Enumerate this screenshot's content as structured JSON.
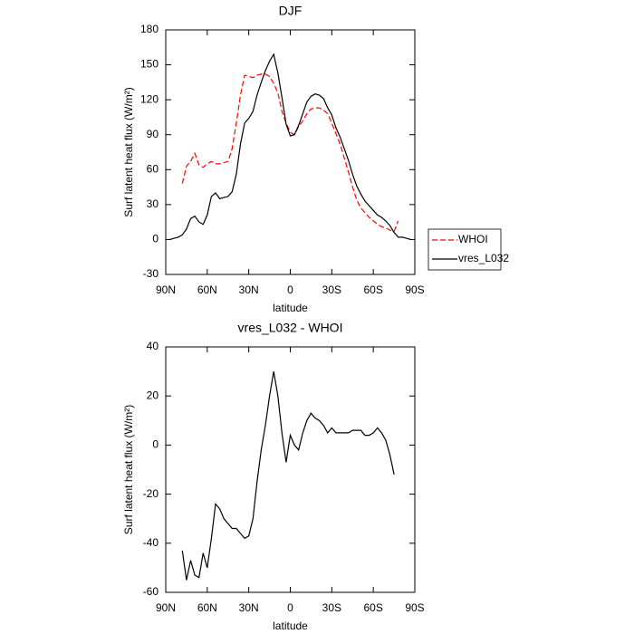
{
  "chart_data": [
    {
      "type": "line",
      "title": "DJF",
      "x_label": "latitude",
      "y_label": "Surf latent heat flux (W/m²)",
      "x": [
        87,
        84,
        81,
        78,
        75,
        72,
        69,
        66,
        63,
        60,
        57,
        54,
        51,
        48,
        45,
        42,
        39,
        36,
        33,
        30,
        27,
        24,
        21,
        18,
        15,
        12,
        9,
        6,
        3,
        0,
        -3,
        -6,
        -9,
        -12,
        -15,
        -18,
        -21,
        -24,
        -27,
        -30,
        -33,
        -36,
        -39,
        -42,
        -45,
        -48,
        -51,
        -54,
        -57,
        -60,
        -63,
        -66,
        -69,
        -72,
        -75,
        -78,
        -81,
        -84,
        -87
      ],
      "series": [
        {
          "name": "WHOI",
          "color": "#ff0000",
          "line_style": "dashed",
          "values": [
            null,
            null,
            null,
            48,
            63,
            67,
            74,
            64,
            62,
            65,
            67,
            65,
            65,
            66,
            67,
            78,
            100,
            124,
            141,
            140,
            139,
            141,
            142,
            142,
            140,
            134,
            126,
            110,
            100,
            92,
            90,
            97,
            102,
            108,
            112,
            113,
            113,
            111,
            108,
            100,
            91,
            82,
            70,
            58,
            45,
            34,
            27,
            23,
            19,
            16,
            13,
            11,
            10,
            8,
            7,
            16,
            null,
            null,
            null
          ]
        },
        {
          "name": "vres_L032",
          "color": "#000000",
          "line_style": "solid",
          "values": [
            0,
            1,
            2,
            4,
            9,
            18,
            20,
            15,
            13,
            21,
            37,
            40,
            35,
            36,
            37,
            41,
            56,
            82,
            100,
            104,
            110,
            124,
            135,
            145,
            153,
            159,
            143,
            122,
            99,
            89,
            90,
            98,
            108,
            118,
            123,
            125,
            124,
            121,
            113,
            107,
            96,
            88,
            78,
            68,
            56,
            46,
            39,
            33,
            29,
            25,
            21,
            19,
            16,
            12,
            6,
            2,
            2,
            1,
            0
          ]
        }
      ],
      "xlim": [
        90,
        -90
      ],
      "xticks": [
        {
          "value": 90,
          "label": "90N"
        },
        {
          "value": 60,
          "label": "60N"
        },
        {
          "value": 30,
          "label": "30N"
        },
        0,
        {
          "value": -30,
          "label": "30S"
        },
        {
          "value": -60,
          "label": "60S"
        },
        {
          "value": -90,
          "label": "90S"
        }
      ],
      "ylim": [
        -30,
        180
      ],
      "yticks": [
        -30,
        0,
        30,
        60,
        90,
        120,
        150,
        180
      ],
      "legend": "right"
    },
    {
      "type": "line",
      "title": "vres_L032 - WHOI",
      "x_label": "latitude",
      "y_label": "Surf latent heat flux (W/m²)",
      "x": [
        87,
        84,
        81,
        78,
        75,
        72,
        69,
        66,
        63,
        60,
        57,
        54,
        51,
        48,
        45,
        42,
        39,
        36,
        33,
        30,
        27,
        24,
        21,
        18,
        15,
        12,
        9,
        6,
        3,
        0,
        -3,
        -6,
        -9,
        -12,
        -15,
        -18,
        -21,
        -24,
        -27,
        -30,
        -33,
        -36,
        -39,
        -42,
        -45,
        -48,
        -51,
        -54,
        -57,
        -60,
        -63,
        -66,
        -69,
        -72,
        -75,
        -78,
        -81,
        -84,
        -87
      ],
      "series": [
        {
          "color": "#000000",
          "line_style": "solid",
          "values": [
            null,
            null,
            null,
            -43,
            -55,
            -47,
            -53,
            -54,
            -44,
            -50,
            -38,
            -24,
            -26,
            -30,
            -32,
            -34,
            -34,
            -36,
            -38,
            -37,
            -30,
            -15,
            -2,
            8,
            20,
            30,
            20,
            5,
            -7,
            4,
            0,
            -2,
            5,
            10,
            13,
            11,
            10,
            8,
            5,
            7,
            5,
            5,
            5,
            5,
            6,
            6,
            6,
            4,
            4,
            5,
            7,
            5,
            2,
            -4,
            -12,
            null,
            null,
            null,
            null
          ]
        }
      ],
      "xlim": [
        90,
        -90
      ],
      "xticks": [
        {
          "value": 90,
          "label": "90N"
        },
        {
          "value": 60,
          "label": "60N"
        },
        {
          "value": 30,
          "label": "30N"
        },
        0,
        {
          "value": -30,
          "label": "30S"
        },
        {
          "value": -60,
          "label": "60S"
        },
        {
          "value": -90,
          "label": "90S"
        }
      ],
      "ylim": [
        -60,
        40
      ],
      "yticks": [
        -60,
        -40,
        -20,
        0,
        20,
        40
      ]
    }
  ]
}
